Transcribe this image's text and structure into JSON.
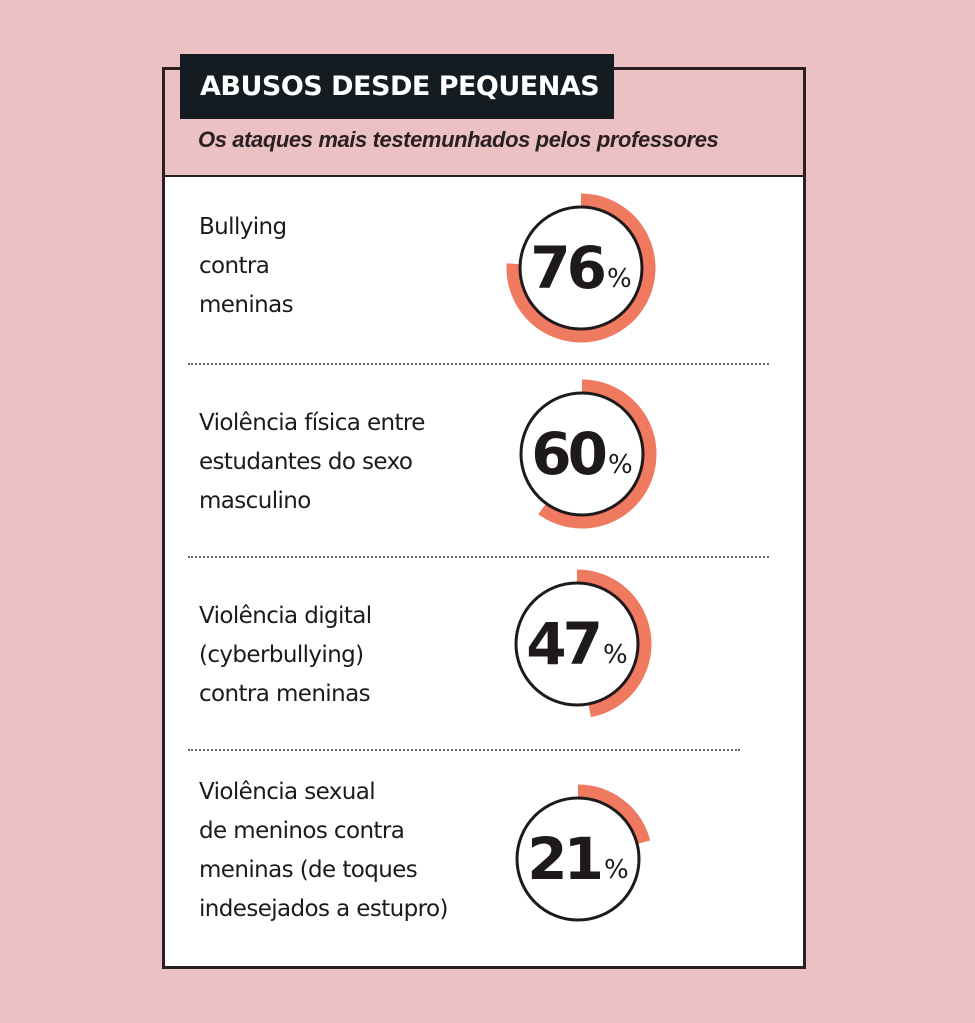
{
  "header": {
    "title": "ABUSOS DESDE PEQUENAS",
    "subtitle": "Os ataques mais testemunhados pelos professores"
  },
  "colors": {
    "background": "#ebc1c3",
    "title_bar": "#141c22",
    "arc": "#f07a60",
    "ring": "#1e1a1b"
  },
  "items": [
    {
      "lines": [
        "Bullying",
        "contra",
        "meninas"
      ],
      "value": "76",
      "unit": "%"
    },
    {
      "lines": [
        "Violência física entre",
        "estudantes do sexo",
        "masculino"
      ],
      "value": "60",
      "unit": "%"
    },
    {
      "lines": [
        "Violência digital",
        "(cyberbullying)",
        "contra meninas"
      ],
      "value": "47",
      "unit": "%"
    },
    {
      "lines": [
        "Violência sexual",
        "de meninos contra",
        "meninas (de toques",
        "indesejados a estupro)"
      ],
      "value": "21",
      "unit": "%"
    }
  ],
  "chart_data": {
    "type": "pie",
    "subtype": "radial-gauge",
    "title": "ABUSOS DESDE PEQUENAS",
    "subtitle": "Os ataques mais testemunhados pelos professores",
    "categories": [
      "Bullying contra meninas",
      "Violência física entre estudantes do sexo masculino",
      "Violência digital (cyberbullying) contra meninas",
      "Violência sexual de meninos contra meninas (de toques indesejados a estupro)"
    ],
    "values": [
      76,
      60,
      47,
      21
    ],
    "unit": "%",
    "ylim": [
      0,
      100
    ]
  }
}
